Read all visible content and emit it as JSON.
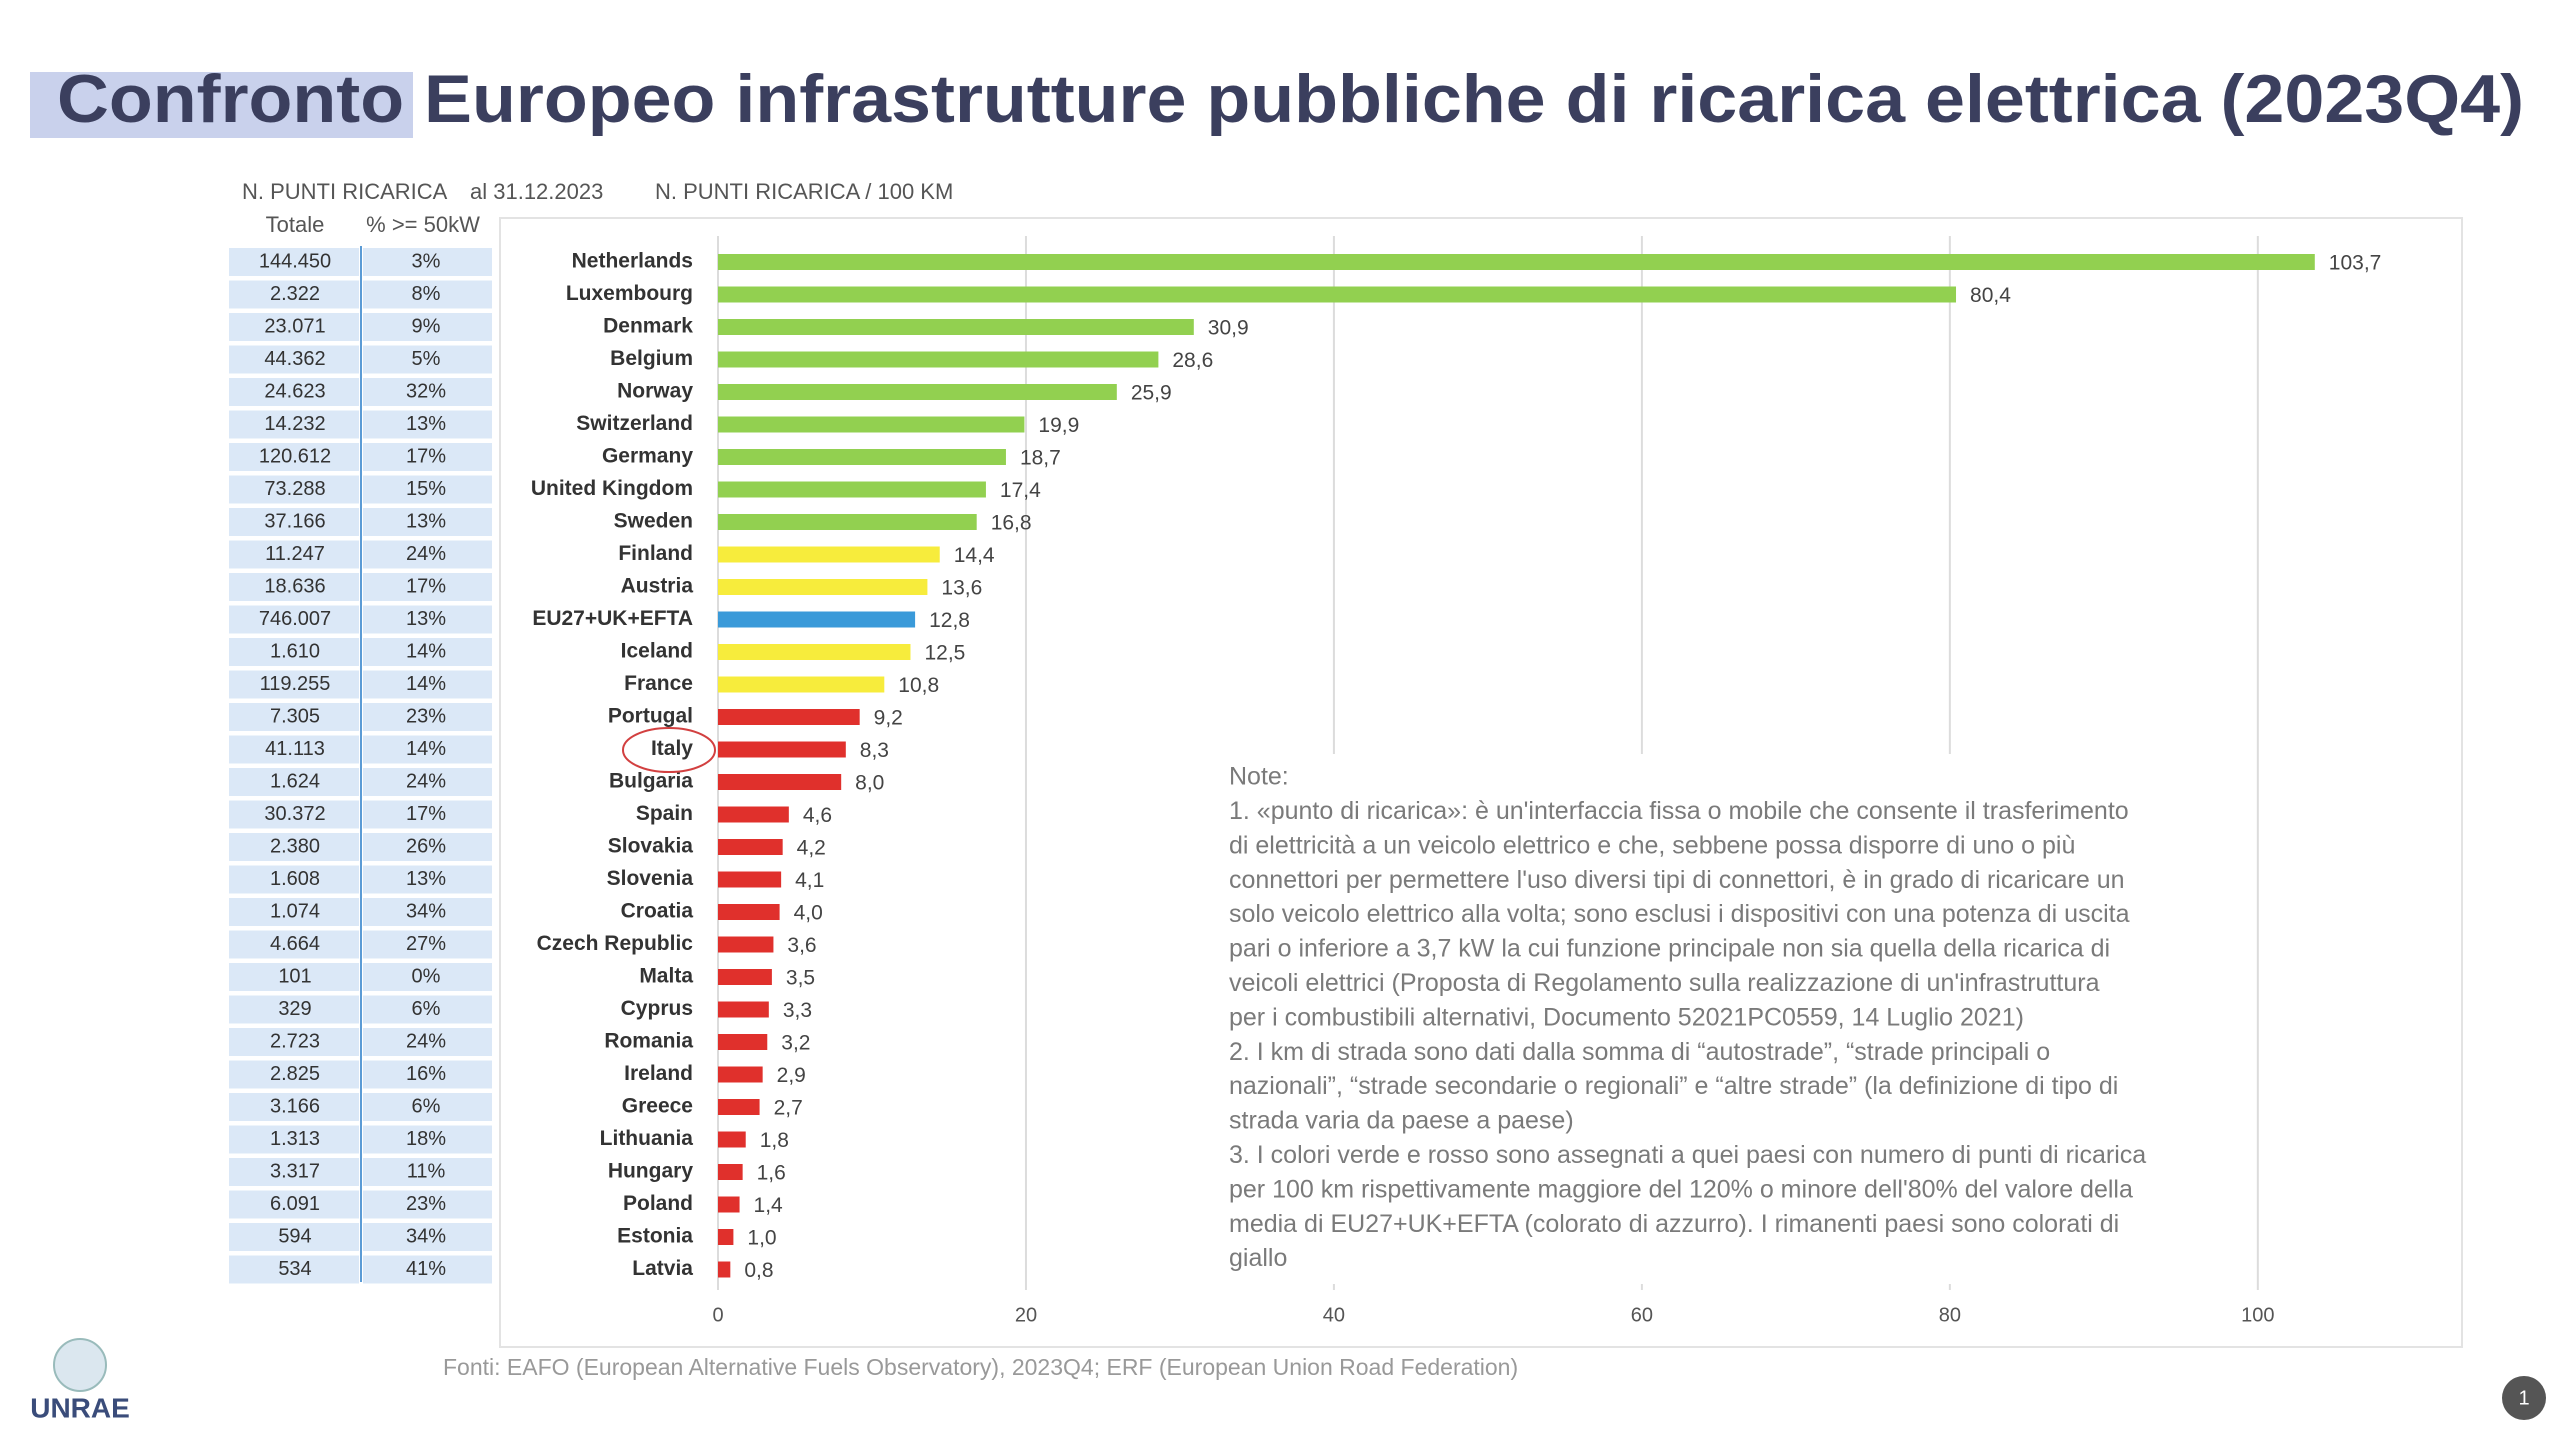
{
  "title": "Confronto Europeo infrastrutture pubbliche di ricarica elettrica (2023Q4)",
  "table": {
    "header": "N. PUNTI RICARICA",
    "date": "al 31.12.2023",
    "columns": [
      "Totale",
      "% >= 50kW"
    ],
    "rows": [
      [
        "144.450",
        "3%"
      ],
      [
        "2.322",
        "8%"
      ],
      [
        "23.071",
        "9%"
      ],
      [
        "44.362",
        "5%"
      ],
      [
        "24.623",
        "32%"
      ],
      [
        "14.232",
        "13%"
      ],
      [
        "120.612",
        "17%"
      ],
      [
        "73.288",
        "15%"
      ],
      [
        "37.166",
        "13%"
      ],
      [
        "11.247",
        "24%"
      ],
      [
        "18.636",
        "17%"
      ],
      [
        "746.007",
        "13%"
      ],
      [
        "1.610",
        "14%"
      ],
      [
        "119.255",
        "14%"
      ],
      [
        "7.305",
        "23%"
      ],
      [
        "41.113",
        "14%"
      ],
      [
        "1.624",
        "24%"
      ],
      [
        "30.372",
        "17%"
      ],
      [
        "2.380",
        "26%"
      ],
      [
        "1.608",
        "13%"
      ],
      [
        "1.074",
        "34%"
      ],
      [
        "4.664",
        "27%"
      ],
      [
        "101",
        "0%"
      ],
      [
        "329",
        "6%"
      ],
      [
        "2.723",
        "24%"
      ],
      [
        "2.825",
        "16%"
      ],
      [
        "3.166",
        "6%"
      ],
      [
        "1.313",
        "18%"
      ],
      [
        "3.317",
        "11%"
      ],
      [
        "6.091",
        "23%"
      ],
      [
        "594",
        "34%"
      ],
      [
        "534",
        "41%"
      ]
    ]
  },
  "chart_data": {
    "type": "hbar",
    "subtitle": "N. PUNTI RICARICA / 100 KM",
    "categories": [
      "Netherlands",
      "Luxembourg",
      "Denmark",
      "Belgium",
      "Norway",
      "Switzerland",
      "Germany",
      "United Kingdom",
      "Sweden",
      "Finland",
      "Austria",
      "EU27+UK+EFTA",
      "Iceland",
      "France",
      "Portugal",
      "Italy",
      "Bulgaria",
      "Spain",
      "Slovakia",
      "Slovenia",
      "Croatia",
      "Czech Republic",
      "Malta",
      "Cyprus",
      "Romania",
      "Ireland",
      "Greece",
      "Lithuania",
      "Hungary",
      "Poland",
      "Estonia",
      "Latvia"
    ],
    "values": [
      103.7,
      80.4,
      30.9,
      28.6,
      25.9,
      19.9,
      18.7,
      17.4,
      16.8,
      14.4,
      13.6,
      12.8,
      12.5,
      10.8,
      9.2,
      8.3,
      8.0,
      4.6,
      4.2,
      4.1,
      4.0,
      3.6,
      3.5,
      3.3,
      3.2,
      2.9,
      2.7,
      1.8,
      1.6,
      1.4,
      1.0,
      0.8
    ],
    "value_labels": [
      "103,7",
      "80,4",
      "30,9",
      "28,6",
      "25,9",
      "19,9",
      "18,7",
      "17,4",
      "16,8",
      "14,4",
      "13,6",
      "12,8",
      "12,5",
      "10,8",
      "9,2",
      "8,3",
      "8,0",
      "4,6",
      "4,2",
      "4,1",
      "4,0",
      "3,6",
      "3,5",
      "3,3",
      "3,2",
      "2,9",
      "2,7",
      "1,8",
      "1,6",
      "1,4",
      "1,0",
      "0,8"
    ],
    "colors": [
      "#92d050",
      "#92d050",
      "#92d050",
      "#92d050",
      "#92d050",
      "#92d050",
      "#92d050",
      "#92d050",
      "#92d050",
      "#f7ec3c",
      "#f7ec3c",
      "#3a9ad9",
      "#f7ec3c",
      "#f7ec3c",
      "#e0302c",
      "#e0302c",
      "#e0302c",
      "#e0302c",
      "#e0302c",
      "#e0302c",
      "#e0302c",
      "#e0302c",
      "#e0302c",
      "#e0302c",
      "#e0302c",
      "#e0302c",
      "#e0302c",
      "#e0302c",
      "#e0302c",
      "#e0302c",
      "#e0302c",
      "#e0302c"
    ],
    "xlim": [
      0,
      113
    ],
    "xticks": [
      0,
      20,
      40,
      60,
      80,
      100
    ],
    "grid": true
  },
  "notes": [
    "Note:",
    "1. «punto di ricarica»: è un'interfaccia fissa o mobile che consente il trasferimento",
    "di elettricità a un veicolo elettrico e che, sebbene possa disporre di uno o più",
    "connettori per permettere l'uso diversi tipi di connettori, è in grado di ricaricare un",
    "solo veicolo elettrico alla volta; sono esclusi i dispositivi con una potenza di uscita",
    "pari o inferiore a 3,7 kW la cui funzione principale non sia quella della ricarica di",
    "veicoli elettrici (Proposta di Regolamento sulla realizzazione di un'infrastruttura",
    "per i combustibili alternativi, Documento 52021PC0559, 14 Luglio 2021)",
    "2. I km di strada sono dati dalla somma di “autostrade”, “strade principali o",
    "nazionali”, “strade secondarie o regionali” e “altre strade” (la definizione di tipo di",
    "strada varia da paese a paese)",
    "3. I colori verde e rosso sono assegnati a quei paesi con numero di punti di ricarica",
    "per 100 km rispettivamente maggiore del 120% o minore dell'80% del valore della",
    "media di EU27+UK+EFTA (colorato di azzurro). I rimanenti paesi sono colorati di",
    "giallo"
  ],
  "source": "Fonti: EAFO (European Alternative Fuels Observatory), 2023Q4; ERF (European Union Road Federation)",
  "logo": "UNRAE",
  "page_number": "1"
}
